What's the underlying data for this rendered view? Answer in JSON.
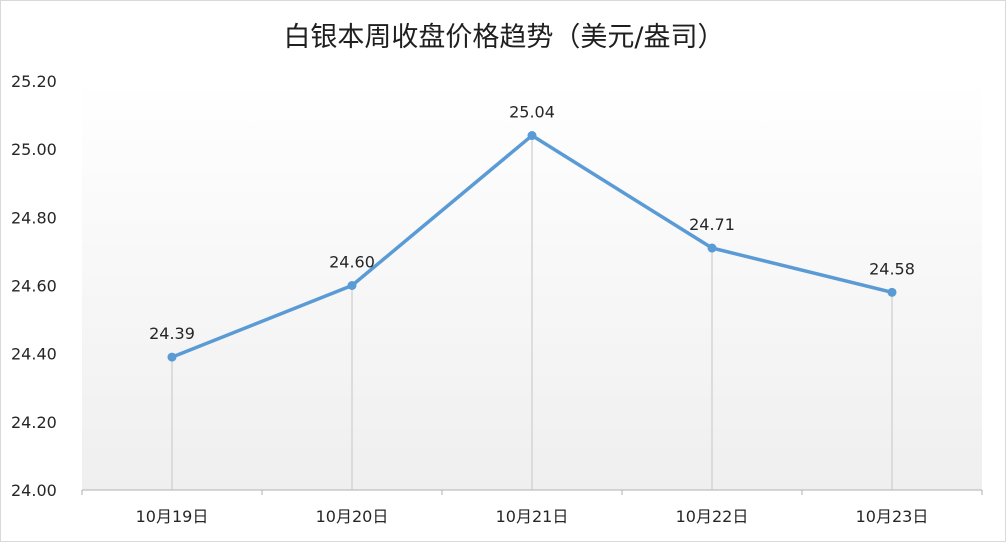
{
  "chart_data": {
    "type": "line",
    "title": "白银本周收盘价格趋势（美元/盎司）",
    "categories": [
      "10月19日",
      "10月20日",
      "10月21日",
      "10月22日",
      "10月23日"
    ],
    "values": [
      24.39,
      24.6,
      25.04,
      24.71,
      24.58
    ],
    "data_labels": [
      "24.39",
      "24.60",
      "25.04",
      "24.71",
      "24.58"
    ],
    "yticks": [
      "24.00",
      "24.20",
      "24.40",
      "24.60",
      "24.80",
      "25.00",
      "25.20"
    ],
    "ylim": [
      24.0,
      25.2
    ],
    "xlabel": "",
    "ylabel": "",
    "grid": false,
    "drop_lines": true,
    "line_color": "#5b9bd5",
    "drop_line_color": "#d0d0d0",
    "background_gradient": [
      "#ffffff",
      "#efefef"
    ]
  }
}
